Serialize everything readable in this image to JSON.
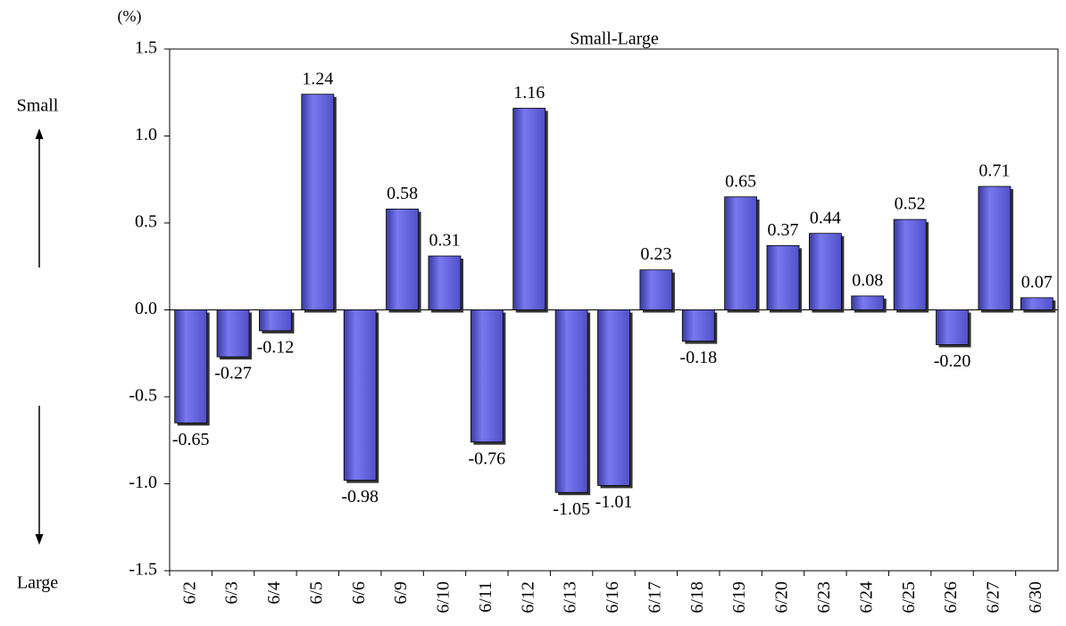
{
  "chart_data": {
    "type": "bar",
    "title": "Small-Large",
    "y_unit": "(%)",
    "side_labels": {
      "top": "Small",
      "bottom": "Large"
    },
    "categories": [
      "6/2",
      "6/3",
      "6/4",
      "6/5",
      "6/6",
      "6/9",
      "6/10",
      "6/11",
      "6/12",
      "6/13",
      "6/16",
      "6/17",
      "6/18",
      "6/19",
      "6/20",
      "6/23",
      "6/24",
      "6/25",
      "6/26",
      "6/27",
      "6/30"
    ],
    "values": [
      -0.65,
      -0.27,
      -0.12,
      1.24,
      -0.98,
      0.58,
      0.31,
      -0.76,
      1.16,
      -1.05,
      -1.01,
      0.23,
      -0.18,
      0.65,
      0.37,
      0.44,
      0.08,
      0.52,
      -0.2,
      0.71,
      0.07
    ],
    "value_labels": [
      "-0.65",
      "-0.27",
      "-0.12",
      "1.24",
      "-0.98",
      "0.58",
      "0.31",
      "-0.76",
      "1.16",
      "-1.05",
      "-1.01",
      "0.23",
      "-0.18",
      "0.65",
      "0.37",
      "0.44",
      "0.08",
      "0.52",
      "-0.20",
      "0.71",
      "0.07"
    ],
    "color": "#7878f0",
    "ylim": [
      -1.5,
      1.5
    ],
    "yticks": [
      {
        "value": -1.5,
        "label": "-1.5"
      },
      {
        "value": -1,
        "label": "-1.0"
      },
      {
        "value": -0.5,
        "label": "-0.5"
      },
      {
        "value": 0,
        "label": "0.0"
      },
      {
        "value": 0.5,
        "label": "0.5"
      },
      {
        "value": 1,
        "label": "1.0"
      },
      {
        "value": 1.5,
        "label": "1.5"
      }
    ],
    "grid": false
  }
}
